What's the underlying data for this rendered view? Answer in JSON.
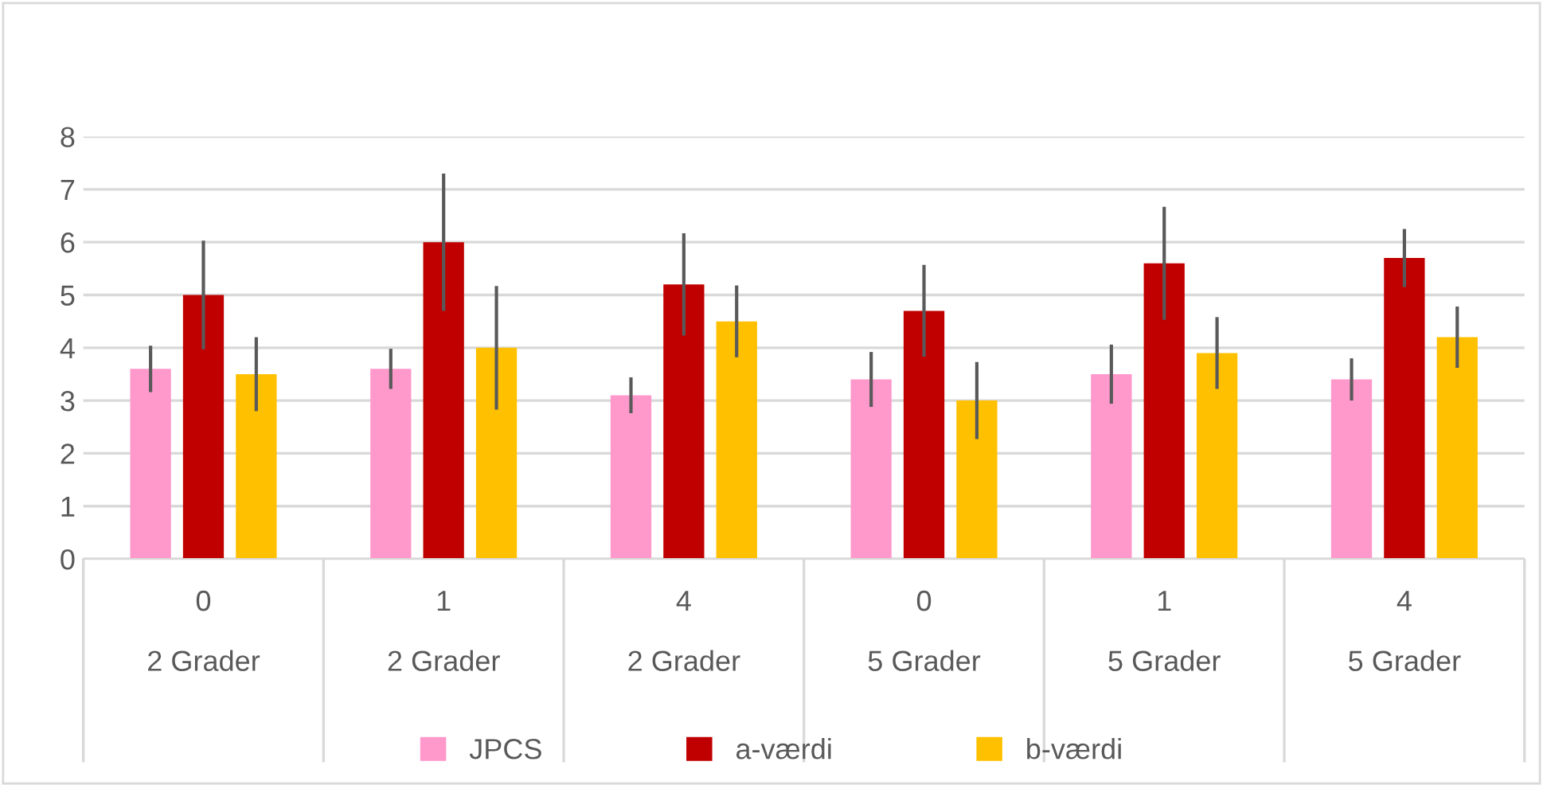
{
  "chart_data": {
    "type": "bar",
    "categories": [
      "0\n2 Grader",
      "1\n2 Grader",
      "4\n2 Grader",
      "0\n5 Grader",
      "1\n5 Grader",
      "4\n5 Grader"
    ],
    "series": [
      {
        "name": "JPCS",
        "color": "#ff99cc",
        "values": [
          3.6,
          3.6,
          3.1,
          3.4,
          3.5,
          3.4
        ],
        "errors": [
          0.44,
          0.38,
          0.34,
          0.52,
          0.56,
          0.4
        ]
      },
      {
        "name": "a-værdi",
        "color": "#c00000",
        "values": [
          5.0,
          6.0,
          5.2,
          4.7,
          5.6,
          5.7
        ],
        "errors": [
          1.03,
          1.3,
          0.97,
          0.87,
          1.07,
          0.55
        ]
      },
      {
        "name": "b-værdi",
        "color": "#ffc000",
        "values": [
          3.5,
          4.0,
          4.5,
          3.0,
          3.9,
          4.2
        ],
        "errors": [
          0.7,
          1.17,
          0.68,
          0.73,
          0.68,
          0.58
        ]
      }
    ],
    "ylim": [
      0,
      8
    ],
    "yticks": [
      0,
      1,
      2,
      3,
      4,
      5,
      6,
      7,
      8
    ],
    "grid": "y",
    "legend": "bottom"
  }
}
